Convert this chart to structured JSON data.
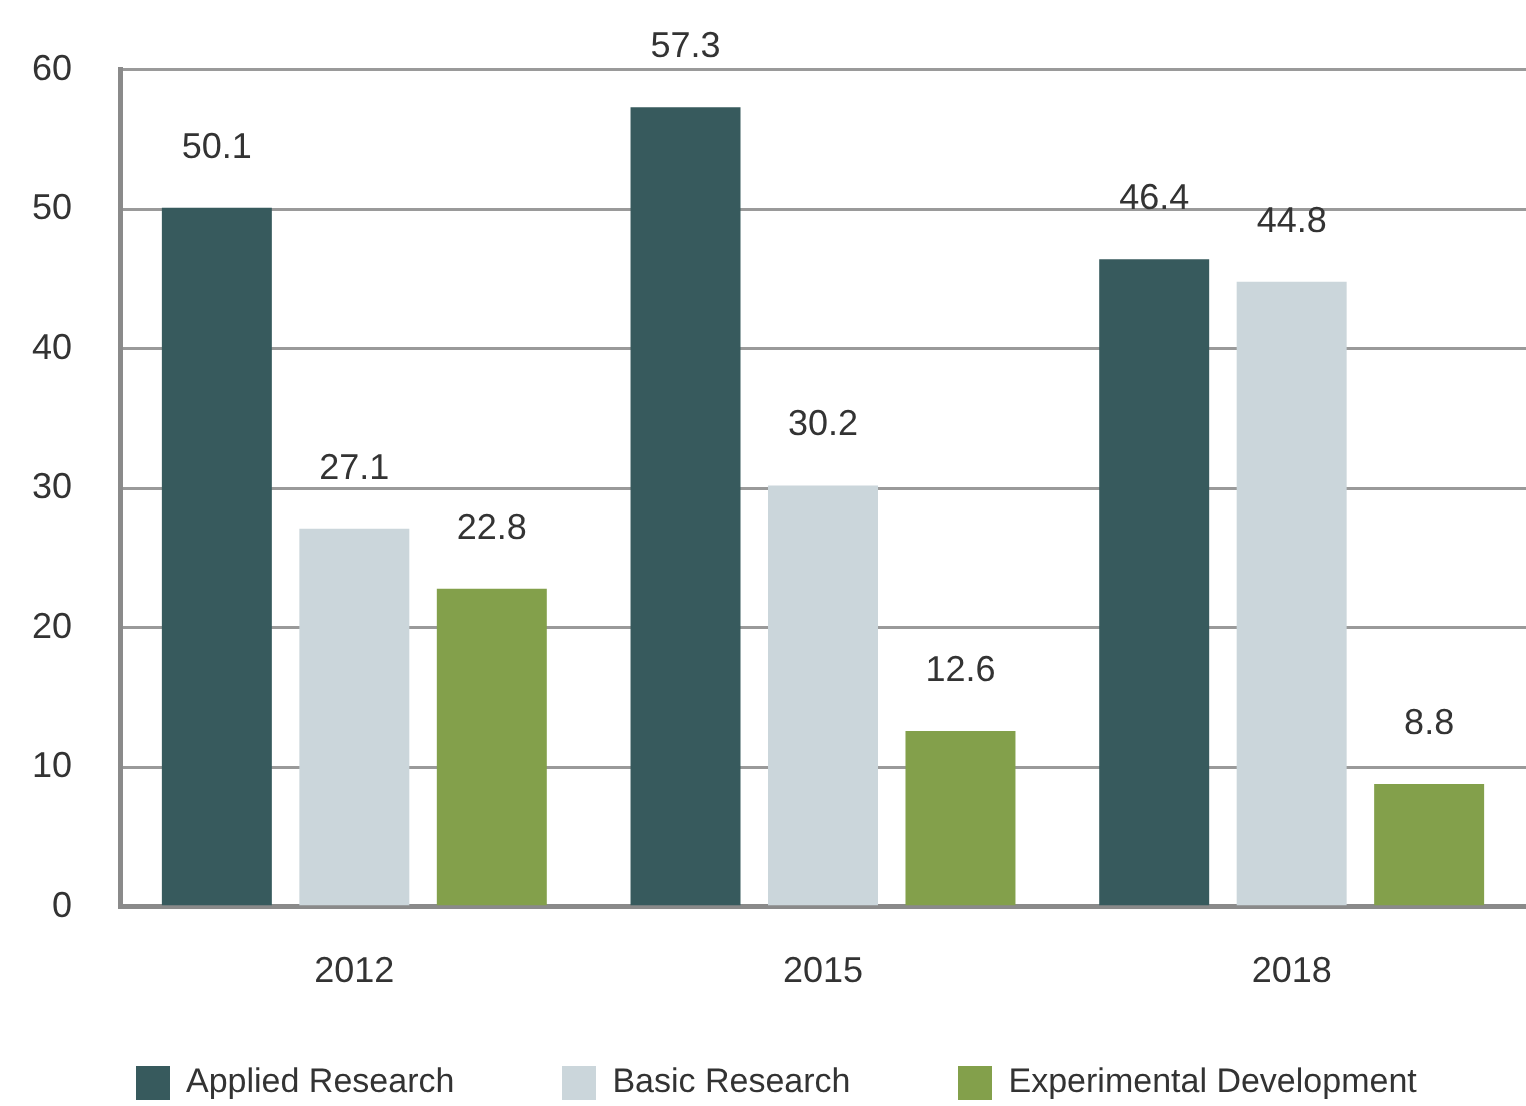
{
  "chart_data": {
    "type": "bar",
    "categories": [
      "2012",
      "2015",
      "2018"
    ],
    "series": [
      {
        "name": "Applied Research",
        "color": "#375a5d",
        "values": [
          50.1,
          57.3,
          46.4
        ]
      },
      {
        "name": "Basic Research",
        "color": "#cbd6db",
        "values": [
          27.1,
          30.2,
          44.8
        ]
      },
      {
        "name": "Experimental Development",
        "color": "#83a04b",
        "values": [
          22.8,
          12.6,
          8.8
        ]
      }
    ],
    "ylim": [
      0,
      60
    ],
    "yticks": [
      0,
      10,
      20,
      30,
      40,
      50,
      60
    ],
    "grid": "y",
    "legend": "bottom",
    "data_labels": true
  }
}
